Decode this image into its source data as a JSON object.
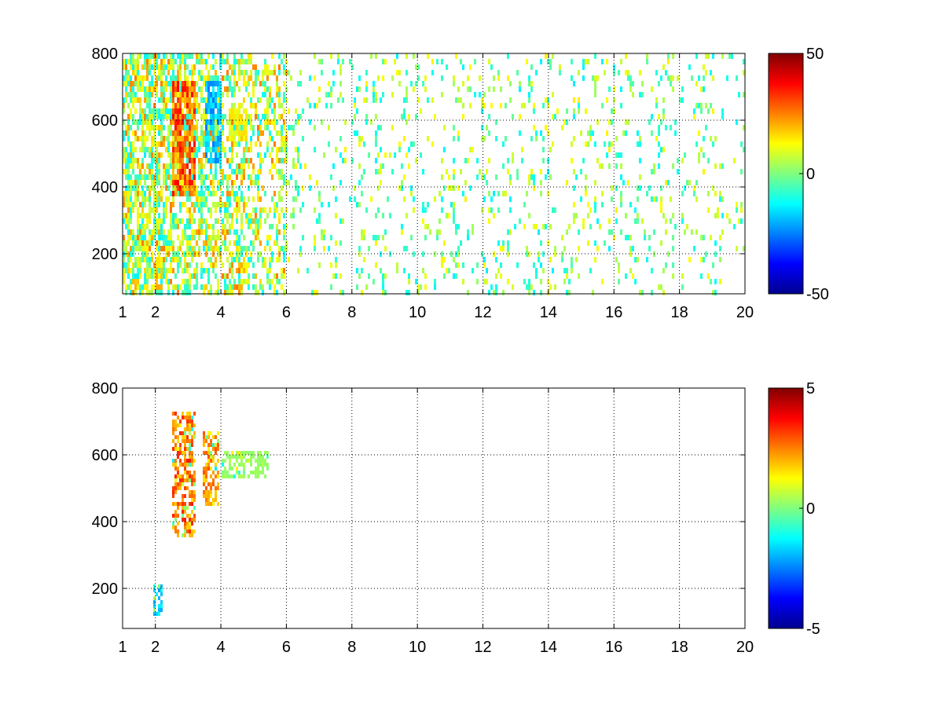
{
  "chart_data": [
    {
      "type": "heatmap",
      "title": "",
      "xlabel": "",
      "ylabel": "",
      "xlim": [
        1,
        20
      ],
      "ylim": [
        80,
        800
      ],
      "xticks": [
        1,
        2,
        4,
        6,
        8,
        10,
        12,
        14,
        16,
        18,
        20
      ],
      "xtick_labels": [
        "1",
        "2",
        "4",
        "6",
        "8",
        "10",
        "12",
        "14",
        "16",
        "18",
        "20"
      ],
      "yticks": [
        200,
        400,
        600,
        800
      ],
      "ytick_labels": [
        "200",
        "400",
        "600",
        "800"
      ],
      "grid": true,
      "colormap": "jet",
      "clim": [
        -50,
        50
      ],
      "colorbar_ticks": [
        50,
        0,
        -50
      ],
      "colorbar_tick_labels": [
        "50",
        "0",
        "-50"
      ],
      "features": [
        {
          "x": [
            2.5,
            3.2
          ],
          "y": [
            380,
            720
          ],
          "value": 32
        },
        {
          "x": [
            3.5,
            4.0
          ],
          "y": [
            480,
            720
          ],
          "value": -22
        },
        {
          "x": [
            4.2,
            4.8
          ],
          "y": [
            540,
            650
          ],
          "value": 15
        },
        {
          "x": [
            1.9,
            2.2
          ],
          "y": [
            100,
            200
          ],
          "value": 20
        }
      ]
    },
    {
      "type": "heatmap",
      "title": "",
      "xlabel": "",
      "ylabel": "",
      "xlim": [
        1,
        20
      ],
      "ylim": [
        80,
        800
      ],
      "xticks": [
        1,
        2,
        4,
        6,
        8,
        10,
        12,
        14,
        16,
        18,
        20
      ],
      "xtick_labels": [
        "1",
        "2",
        "4",
        "6",
        "8",
        "10",
        "12",
        "14",
        "16",
        "18",
        "20"
      ],
      "yticks": [
        200,
        400,
        600,
        800
      ],
      "ytick_labels": [
        "200",
        "400",
        "600",
        "800"
      ],
      "grid": true,
      "colormap": "jet",
      "clim": [
        -5,
        5
      ],
      "colorbar_ticks": [
        5,
        0,
        -5
      ],
      "colorbar_tick_labels": [
        "5",
        "0",
        "-5"
      ],
      "features": [
        {
          "x": [
            2.5,
            3.2
          ],
          "y": [
            360,
            740
          ],
          "value": 3
        },
        {
          "x": [
            3.4,
            3.9
          ],
          "y": [
            450,
            680
          ],
          "value": 2.5
        },
        {
          "x": [
            4.0,
            5.4
          ],
          "y": [
            540,
            620
          ],
          "value": 0.3
        },
        {
          "x": [
            1.9,
            2.2
          ],
          "y": [
            120,
            220
          ],
          "value": -2
        }
      ]
    }
  ]
}
